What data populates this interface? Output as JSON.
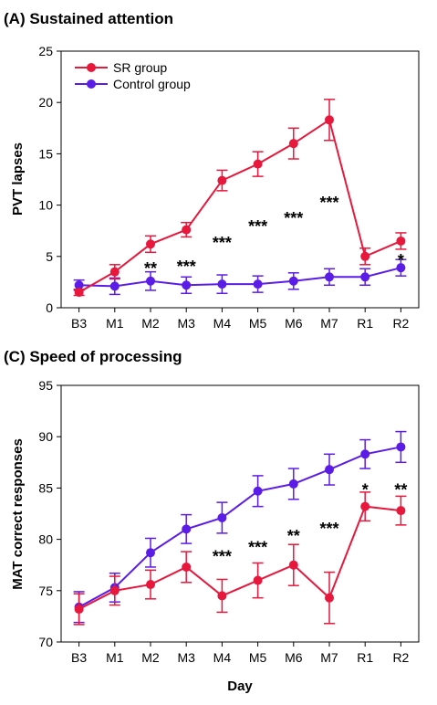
{
  "chart_data": [
    {
      "type": "line",
      "title": "(A) Sustained attention",
      "xlabel": "",
      "ylabel": "PVT lapses",
      "ylim": [
        0,
        25
      ],
      "yticks": [
        0,
        5,
        10,
        15,
        20,
        25
      ],
      "categories": [
        "B3",
        "M1",
        "M2",
        "M3",
        "M4",
        "M5",
        "M6",
        "M7",
        "R1",
        "R2"
      ],
      "legend_position": "top-left",
      "series": [
        {
          "name": "SR group",
          "color": "#e8173c",
          "values": [
            1.5,
            3.5,
            6.2,
            7.6,
            12.4,
            14.0,
            16.0,
            18.3,
            5.0,
            6.5
          ],
          "error": [
            0.3,
            0.7,
            0.8,
            0.7,
            1.0,
            1.2,
            1.5,
            2.0,
            0.8,
            0.8
          ]
        },
        {
          "name": "Control group",
          "color": "#5b1ce8",
          "values": [
            2.2,
            2.1,
            2.6,
            2.2,
            2.3,
            2.3,
            2.6,
            3.0,
            3.0,
            3.9
          ],
          "error": [
            0.5,
            0.8,
            0.9,
            0.8,
            0.9,
            0.8,
            0.8,
            0.8,
            0.8,
            0.8
          ]
        }
      ],
      "significance": [
        "",
        "",
        "**",
        "***",
        "***",
        "***",
        "***",
        "***",
        "",
        "*"
      ],
      "significance_y": [
        null,
        null,
        4.0,
        4.2,
        6.5,
        8.1,
        8.9,
        10.4,
        null,
        4.8
      ]
    },
    {
      "type": "line",
      "title": "(C) Speed of processing",
      "xlabel": "Day",
      "ylabel": "MAT correct responses",
      "ylim": [
        70,
        95
      ],
      "yticks": [
        70,
        75,
        80,
        85,
        90,
        95
      ],
      "categories": [
        "B3",
        "M1",
        "M2",
        "M3",
        "M4",
        "M5",
        "M6",
        "M7",
        "R1",
        "R2"
      ],
      "series": [
        {
          "name": "SR group",
          "color": "#e8173c",
          "values": [
            73.2,
            75.0,
            75.6,
            77.3,
            74.5,
            76.0,
            77.5,
            74.3,
            83.2,
            82.8
          ],
          "error": [
            1.5,
            1.4,
            1.4,
            1.5,
            1.6,
            1.7,
            2.0,
            2.5,
            1.4,
            1.4
          ]
        },
        {
          "name": "Control group",
          "color": "#5b1ce8",
          "values": [
            73.4,
            75.3,
            78.7,
            81.0,
            82.1,
            84.7,
            85.4,
            86.8,
            88.3,
            89.0
          ],
          "error": [
            1.5,
            1.4,
            1.4,
            1.4,
            1.5,
            1.5,
            1.5,
            1.5,
            1.4,
            1.5
          ]
        }
      ],
      "significance": [
        "",
        "",
        "",
        "",
        "***",
        "***",
        "**",
        "***",
        "*",
        "**"
      ],
      "significance_y": [
        null,
        null,
        null,
        null,
        78.5,
        79.4,
        80.5,
        81.2,
        85.0,
        85.0
      ]
    }
  ]
}
